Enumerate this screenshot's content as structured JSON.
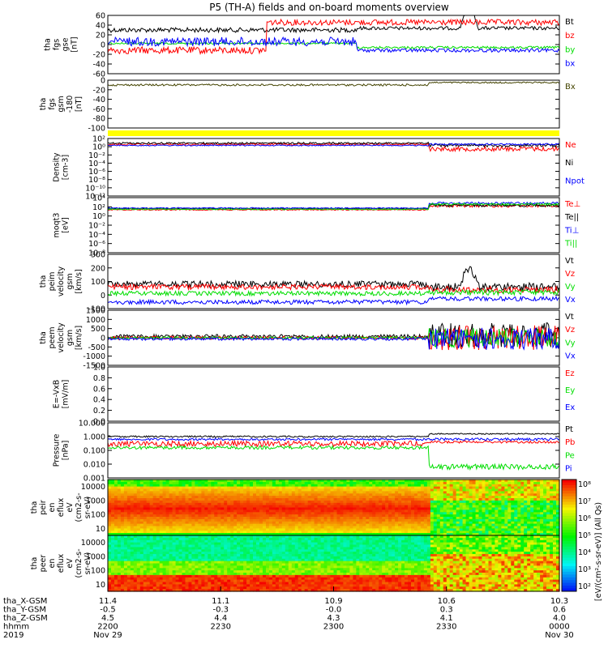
{
  "title": "P5 (TH-A) fields and on-board moments overview",
  "chart_data": [
    {
      "type": "line",
      "ylabel": [
        "tha",
        "fgs",
        "gse",
        "[nT]"
      ],
      "ylim": [
        -60,
        60
      ],
      "ytick_labels": [
        "60",
        "40",
        "20",
        "0",
        "-20",
        "-40",
        "-60"
      ],
      "legend_placement": "right",
      "legend": [
        {
          "name": "Bt",
          "color": "#000000"
        },
        {
          "name": "bz",
          "color": "#ff0000"
        },
        {
          "name": "by",
          "color": "#00dd00"
        },
        {
          "name": "bx",
          "color": "#0000ff"
        }
      ]
    },
    {
      "type": "line",
      "ylabel": [
        "tha",
        "fgs",
        "gsm",
        "-180",
        "[nT]"
      ],
      "ylim": [
        -100,
        0
      ],
      "ytick_labels": [
        "0",
        "-20",
        "-40",
        "-60",
        "-80",
        "-100"
      ],
      "legend_placement": "right",
      "legend": [
        {
          "name": "Bx",
          "color": "#444400"
        }
      ]
    },
    {
      "type": "line",
      "ylabel": [
        "Density",
        "[cm-3]"
      ],
      "yscale": "log",
      "ytick_labels": [
        "10²",
        "10⁰",
        "10⁻²",
        "10⁻⁴",
        "10⁻⁶",
        "10⁻⁸",
        "10⁻¹⁰",
        "10⁻¹²"
      ],
      "legend": [
        {
          "name": "Ne",
          "color": "#ff0000"
        },
        {
          "name": "Ni",
          "color": "#000000"
        },
        {
          "name": "Npot",
          "color": "#0000ff"
        }
      ]
    },
    {
      "type": "line",
      "ylabel": [
        "moqt3",
        "[eV]"
      ],
      "yscale": "log",
      "ytick_labels": [
        "10⁴",
        "10²",
        "10⁰",
        "10⁻²",
        "10⁻⁴",
        "10⁻⁶",
        "10⁻⁸"
      ],
      "legend": [
        {
          "name": "Te⊥",
          "color": "#ff0000"
        },
        {
          "name": "Te||",
          "color": "#000000"
        },
        {
          "name": "Ti⊥",
          "color": "#0000ff"
        },
        {
          "name": "Ti||",
          "color": "#00dd00"
        }
      ]
    },
    {
      "type": "line",
      "ylabel": [
        "tha",
        "peim",
        "velocity",
        "gsm",
        "[km/s]"
      ],
      "ylim": [
        -100,
        300
      ],
      "ytick_labels": [
        "300",
        "200",
        "100",
        "0",
        "-100"
      ],
      "legend": [
        {
          "name": "Vt",
          "color": "#000000"
        },
        {
          "name": "Vz",
          "color": "#ff0000"
        },
        {
          "name": "Vy",
          "color": "#00dd00"
        },
        {
          "name": "Vx",
          "color": "#0000ff"
        }
      ]
    },
    {
      "type": "line",
      "ylabel": [
        "tha",
        "peem",
        "velocity",
        "gsm",
        "[km/s]"
      ],
      "ylim": [
        -1500,
        1500
      ],
      "ytick_labels": [
        "1500",
        "1000",
        "500",
        "0",
        "-500",
        "-1000",
        "-1500"
      ],
      "legend": [
        {
          "name": "Vt",
          "color": "#000000"
        },
        {
          "name": "Vz",
          "color": "#ff0000"
        },
        {
          "name": "Vy",
          "color": "#00dd00"
        },
        {
          "name": "Vx",
          "color": "#0000ff"
        }
      ]
    },
    {
      "type": "line",
      "ylabel": [
        "E=-VxB",
        "[mV/m]"
      ],
      "ylim": [
        0,
        1
      ],
      "ytick_labels": [
        "1.0",
        "0.8",
        "0.6",
        "0.4",
        "0.2",
        "0.0"
      ],
      "legend": [
        {
          "name": "Ez",
          "color": "#ff0000"
        },
        {
          "name": "Ey",
          "color": "#00dd00"
        },
        {
          "name": "Ex",
          "color": "#0000ff"
        }
      ]
    },
    {
      "type": "line",
      "ylabel": [
        "Pressure",
        "[nPa]"
      ],
      "yscale": "log",
      "ytick_labels": [
        "10.000",
        "1.000",
        "0.100",
        "0.010",
        "0.001"
      ],
      "legend": [
        {
          "name": "Pt",
          "color": "#000000"
        },
        {
          "name": "Pb",
          "color": "#ff0000"
        },
        {
          "name": "Pe",
          "color": "#00dd00"
        },
        {
          "name": "Pi",
          "color": "#0000ff"
        }
      ]
    },
    {
      "type": "heatmap",
      "ylabel": [
        "tha",
        "peir",
        "en",
        "eflux",
        "eV",
        "(cm2-s-",
        "sr-eV)"
      ],
      "yscale": "log",
      "ytick_labels": [
        "10000",
        "1000",
        "100",
        "10"
      ]
    },
    {
      "type": "heatmap",
      "ylabel": [
        "tha",
        "peer",
        "en",
        "eflux",
        "eV",
        "(cm2-s-",
        "sr-eV)"
      ],
      "yscale": "log",
      "ytick_labels": [
        "10000",
        "1000",
        "100",
        "10"
      ]
    }
  ],
  "colorbar": {
    "label": "[eV/(cm²-s-sr-eV)] (All Qs)",
    "tick_labels": [
      "10⁸",
      "10⁷",
      "10⁶",
      "10⁵",
      "10⁴",
      "10³",
      "10²"
    ]
  },
  "x_axis": {
    "row_labels": [
      "tha_X-GSM",
      "tha_Y-GSM",
      "tha_Z-GSM",
      "hhmm",
      "2019"
    ],
    "columns": [
      {
        "vals": [
          "11.4",
          "-0.5",
          "4.5",
          "2200",
          "Nov 29"
        ]
      },
      {
        "vals": [
          "11.1",
          "-0.3",
          "4.4",
          "2230",
          ""
        ]
      },
      {
        "vals": [
          "10.9",
          "-0.0",
          "4.3",
          "2300",
          ""
        ]
      },
      {
        "vals": [
          "10.6",
          "0.3",
          "4.1",
          "2330",
          ""
        ]
      },
      {
        "vals": [
          "10.3",
          "0.6",
          "4.0",
          "0000",
          "Nov 30"
        ]
      }
    ]
  }
}
